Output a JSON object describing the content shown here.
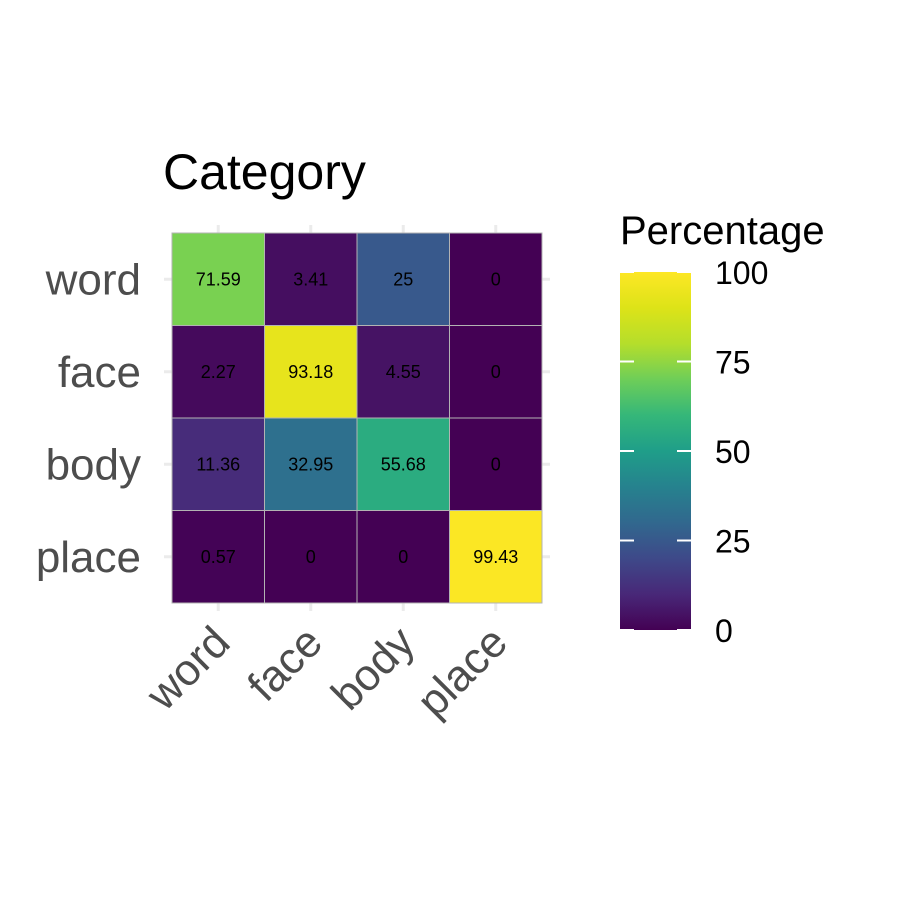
{
  "chart_data": {
    "type": "heatmap",
    "title": "Category",
    "rows": [
      "word",
      "face",
      "body",
      "place"
    ],
    "columns": [
      "word",
      "face",
      "body",
      "place"
    ],
    "values": [
      [
        71.59,
        3.41,
        25,
        0
      ],
      [
        2.27,
        93.18,
        4.55,
        0
      ],
      [
        11.36,
        32.95,
        55.68,
        0
      ],
      [
        0.57,
        0,
        0,
        99.43
      ]
    ],
    "cell_labels": [
      [
        "71.59",
        "3.41",
        "25",
        "0"
      ],
      [
        "2.27",
        "93.18",
        "4.55",
        "0"
      ],
      [
        "11.36",
        "32.95",
        "55.68",
        "0"
      ],
      [
        "0.57",
        "0",
        "0",
        "99.43"
      ]
    ],
    "colorscale": "viridis",
    "value_range": [
      0,
      100
    ],
    "legend": {
      "title": "Percentage",
      "ticks": [
        0,
        25,
        50,
        75,
        100
      ],
      "tick_labels": [
        "0",
        "25",
        "50",
        "75",
        "100"
      ],
      "position": "right"
    },
    "grid": true
  }
}
